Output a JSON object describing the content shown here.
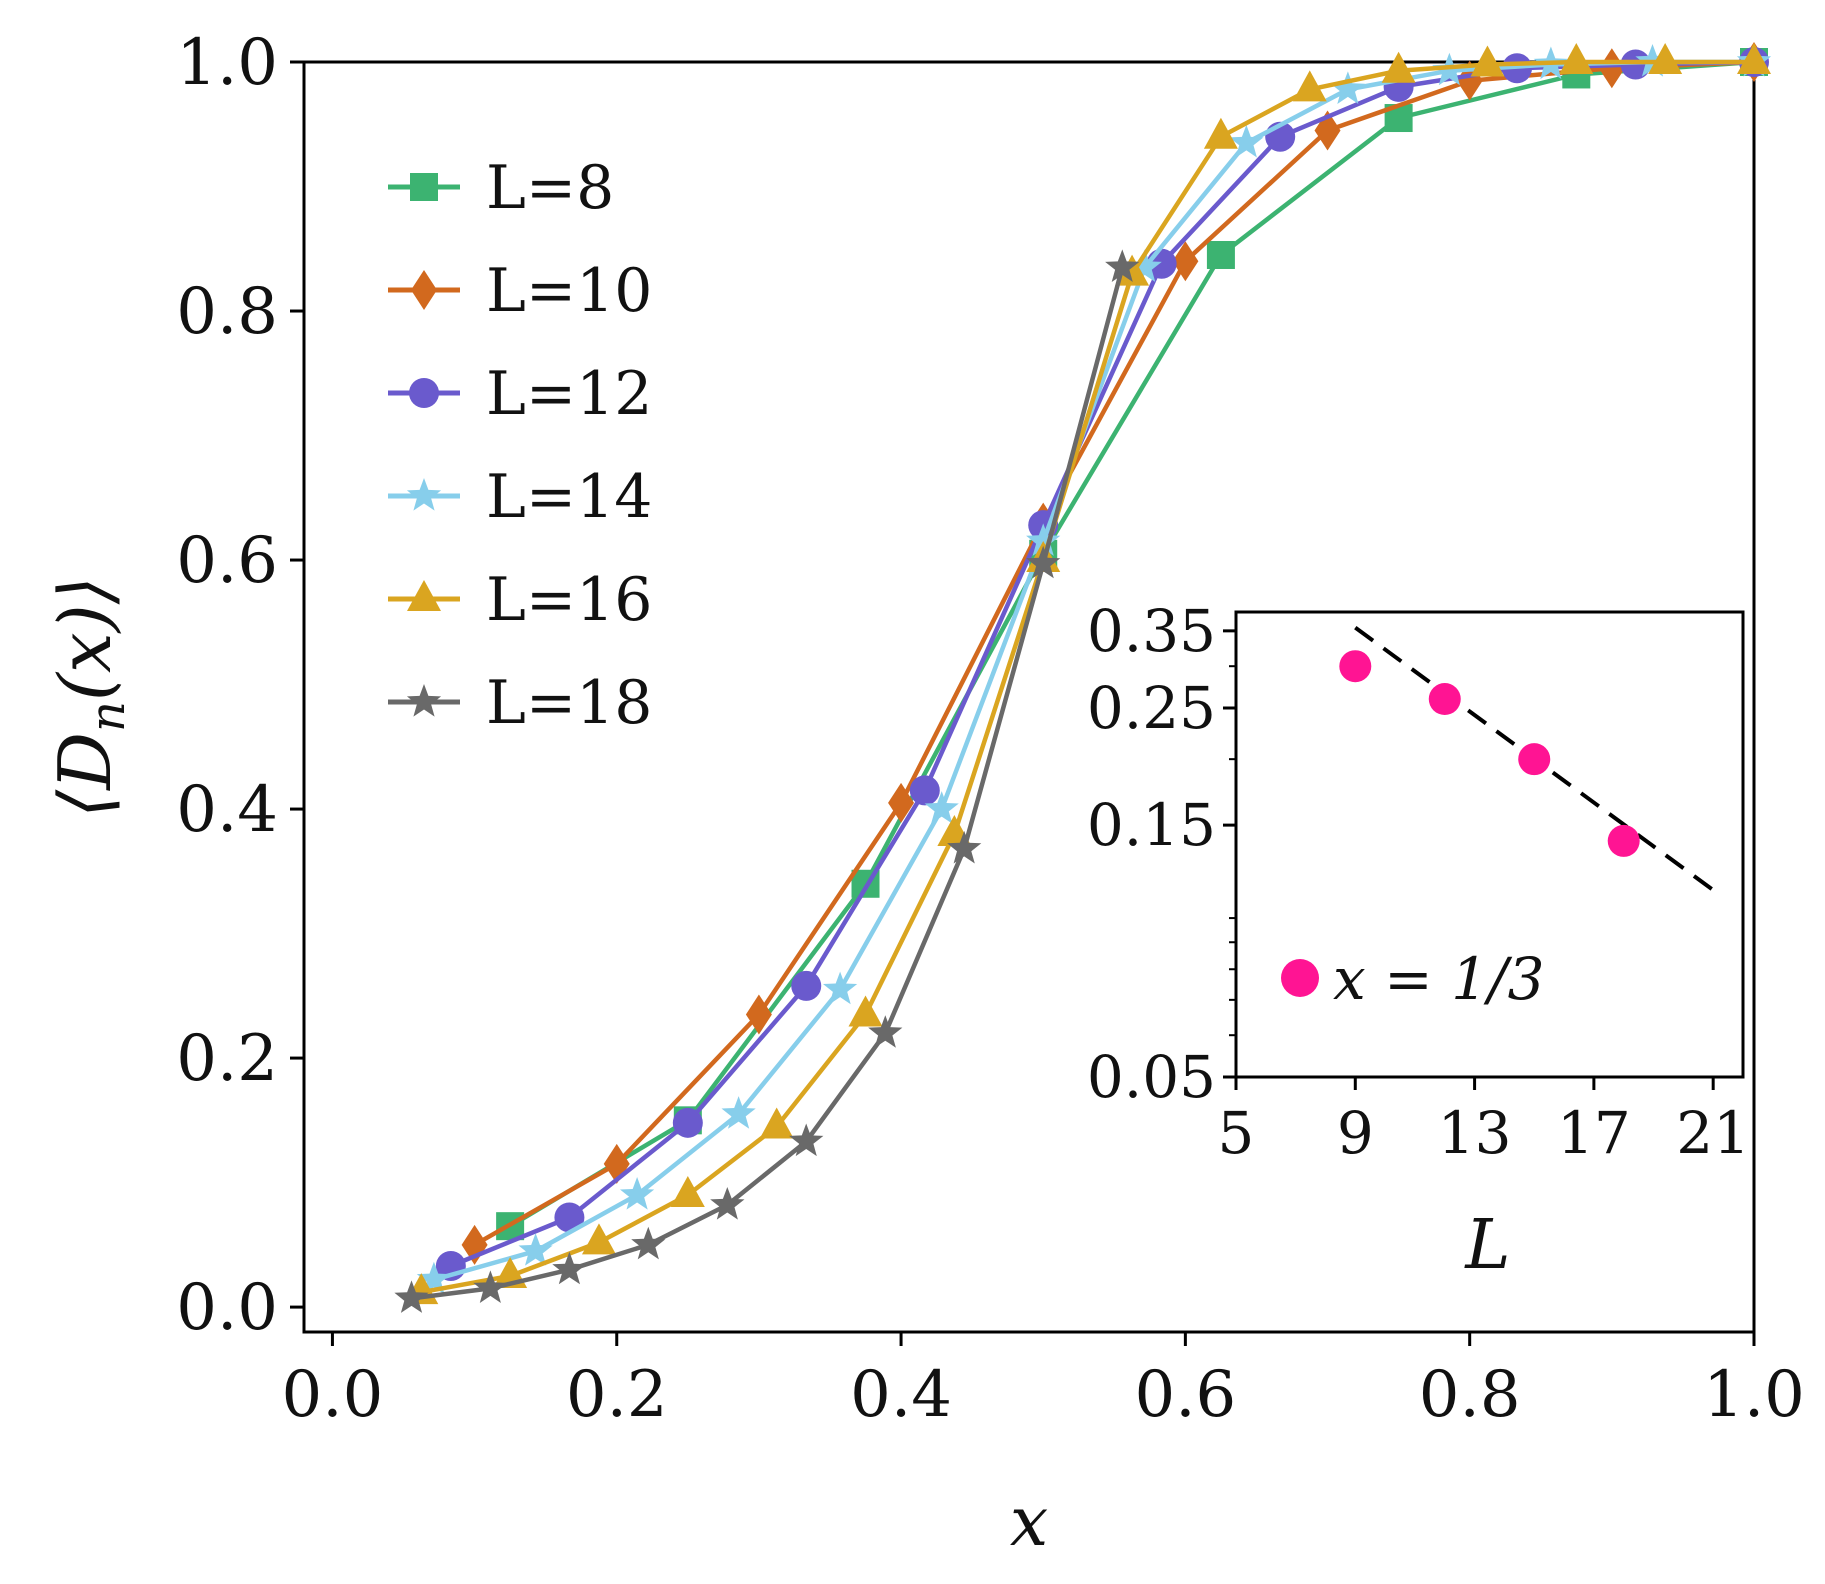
{
  "chart_data": [
    {
      "type": "line",
      "name": "main",
      "title": "",
      "xlabel": "x",
      "ylabel": "⟨D",
      "ylabel_sub": "n",
      "ylabel_tail": "(x)⟩",
      "xlim": [
        -0.02,
        1.0
      ],
      "ylim": [
        -0.02,
        1.0
      ],
      "x_ticks": [
        0.0,
        0.2,
        0.4,
        0.6,
        0.8,
        1.0
      ],
      "x_tick_labels": [
        "0.0",
        "0.2",
        "0.4",
        "0.6",
        "0.8",
        "1.0"
      ],
      "y_ticks": [
        0.0,
        0.2,
        0.4,
        0.6,
        0.8,
        1.0
      ],
      "y_tick_labels": [
        "0.0",
        "0.2",
        "0.4",
        "0.6",
        "0.8",
        "1.0"
      ],
      "legend_position": "top-left",
      "grid": false,
      "series": [
        {
          "name": "L=8",
          "label": "L=8",
          "color": "#3cb371",
          "marker": "square",
          "x": [
            0.125,
            0.25,
            0.375,
            0.5,
            0.625,
            0.75,
            0.875,
            1.0
          ],
          "y": [
            0.065,
            0.15,
            0.34,
            0.605,
            0.845,
            0.955,
            0.99,
            1.0
          ]
        },
        {
          "name": "L=10",
          "label": "L=10",
          "color": "#d2691e",
          "marker": "diamond",
          "x": [
            0.1,
            0.2,
            0.3,
            0.4,
            0.5,
            0.6,
            0.7,
            0.8,
            0.9,
            1.0
          ],
          "y": [
            0.05,
            0.115,
            0.235,
            0.405,
            0.63,
            0.84,
            0.945,
            0.985,
            0.995,
            1.0
          ]
        },
        {
          "name": "L=12",
          "label": "L=12",
          "color": "#6a5acd",
          "marker": "circle",
          "x": [
            0.0833,
            0.1667,
            0.25,
            0.3333,
            0.4167,
            0.5,
            0.5833,
            0.6667,
            0.75,
            0.8333,
            0.9167,
            1.0
          ],
          "y": [
            0.033,
            0.072,
            0.148,
            0.258,
            0.415,
            0.628,
            0.838,
            0.94,
            0.98,
            0.995,
            0.998,
            1.0
          ]
        },
        {
          "name": "L=14",
          "label": "L=14",
          "color": "#87ceeb",
          "marker": "star",
          "x": [
            0.0714,
            0.1429,
            0.2143,
            0.2857,
            0.3571,
            0.4286,
            0.5,
            0.5714,
            0.6429,
            0.7143,
            0.7857,
            0.8571,
            0.9286,
            1.0
          ],
          "y": [
            0.022,
            0.045,
            0.09,
            0.155,
            0.255,
            0.4,
            0.615,
            0.835,
            0.935,
            0.978,
            0.993,
            0.998,
            1.0,
            1.0
          ]
        },
        {
          "name": "L=16",
          "label": "L=16",
          "color": "#daa520",
          "marker": "triangle",
          "x": [
            0.0625,
            0.125,
            0.1875,
            0.25,
            0.3125,
            0.375,
            0.4375,
            0.5,
            0.5625,
            0.625,
            0.6875,
            0.75,
            0.8125,
            0.875,
            0.9375,
            1.0
          ],
          "y": [
            0.012,
            0.025,
            0.052,
            0.09,
            0.145,
            0.235,
            0.38,
            0.6,
            0.83,
            0.94,
            0.978,
            0.993,
            0.998,
            1.0,
            1.0,
            1.0
          ]
        },
        {
          "name": "L=18",
          "label": "L=18",
          "color": "#696969",
          "marker": "star",
          "x": [
            0.0556,
            0.1111,
            0.1667,
            0.2222,
            0.2778,
            0.3333,
            0.3889,
            0.4444,
            0.5,
            0.5556
          ],
          "y": [
            0.007,
            0.015,
            0.03,
            0.05,
            0.082,
            0.133,
            0.22,
            0.368,
            0.597,
            0.835
          ]
        }
      ]
    },
    {
      "type": "scatter",
      "name": "inset",
      "xlabel": "L",
      "ylabel": "",
      "yscale": "log",
      "xlim": [
        5,
        22
      ],
      "ylim": [
        0.05,
        0.38
      ],
      "x_ticks": [
        5,
        9,
        13,
        17,
        21
      ],
      "x_tick_labels": [
        "5",
        "9",
        "13",
        "17",
        "21"
      ],
      "y_ticks": [
        0.05,
        0.15,
        0.25,
        0.35
      ],
      "y_tick_labels": [
        "0.05",
        "0.15",
        "0.25",
        "0.35"
      ],
      "y_minor_ticks": [
        0.06,
        0.07,
        0.08,
        0.09,
        0.1,
        0.2,
        0.3
      ],
      "legend_position": "bottom-left",
      "series": [
        {
          "name": "x = 1/3",
          "label": "x = 1/3",
          "color": "#ff1493",
          "marker": "circle",
          "x": [
            9,
            12,
            15,
            18
          ],
          "y": [
            0.3,
            0.26,
            0.2,
            0.14
          ]
        }
      ],
      "fit_line": {
        "style": "dashed",
        "color": "#000000",
        "x": [
          9,
          21
        ],
        "y": [
          0.355,
          0.113
        ]
      }
    }
  ]
}
